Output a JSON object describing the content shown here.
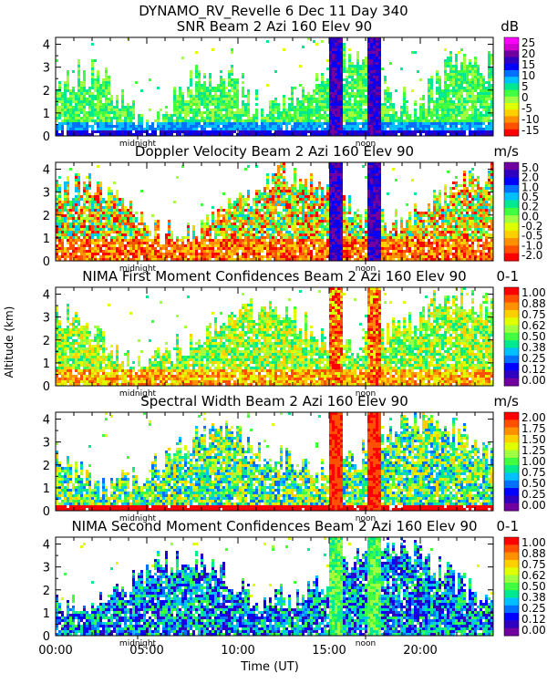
{
  "header": {
    "title": "DYNAMO_RV_Revelle    6 Dec 11 Day 340"
  },
  "axes": {
    "ylabel": "Altitude (km)",
    "xlabel": "Time (UT)",
    "x_ticks": [
      "00:00",
      "05:00",
      "10:00",
      "15:00",
      "20:00"
    ],
    "x_tick_values": [
      0,
      5,
      10,
      15,
      20
    ],
    "xlim": [
      0,
      24
    ],
    "ylim": [
      0,
      4.3
    ],
    "y_ticks": [
      "0",
      "1",
      "2",
      "3",
      "4"
    ],
    "midnight_label": "midnight",
    "noon_label": "noon"
  },
  "chart_data": [
    {
      "type": "heatmap",
      "title": "SNR Beam 2 Azi 160 Elev 90",
      "unit": "dB",
      "colorbar_labels": [
        "25",
        "20",
        "15",
        "10",
        "5",
        "0",
        "-5",
        "-10",
        "-15"
      ],
      "colorbar_colors": [
        "#ff00ff",
        "#d000d0",
        "#7000a0",
        "#3000c0",
        "#0000ff",
        "#0070ff",
        "#00c0ff",
        "#00e890",
        "#40ff40",
        "#a0ff40",
        "#e0ff00",
        "#ffd000",
        "#ff9000",
        "#ff5000",
        "#ff0000"
      ],
      "rain_bands_hours": [
        15.1,
        15.7,
        17.2,
        17.8
      ]
    },
    {
      "type": "heatmap",
      "title": "Doppler Velocity Beam 2 Azi 160 Elev 90",
      "unit": "m/s",
      "colorbar_labels": [
        "5.0",
        "2.0",
        "1.0",
        "0.5",
        "0.2",
        "0.0",
        "-0.2",
        "-0.5",
        "-1.0",
        "-2.0"
      ],
      "colorbar_colors": [
        "#7000a0",
        "#3000c0",
        "#0000ff",
        "#0070ff",
        "#00c0ff",
        "#00e890",
        "#40ff40",
        "#a0ff40",
        "#e0ff00",
        "#ffd000",
        "#ff9000",
        "#ff5000",
        "#ff0000"
      ]
    },
    {
      "type": "heatmap",
      "title": "NIMA First Moment Confidences Beam 2 Azi 160 Elev 90",
      "unit": "0-1",
      "colorbar_labels": [
        "1.00",
        "0.88",
        "0.75",
        "0.62",
        "0.50",
        "0.38",
        "0.25",
        "0.12",
        "0.00"
      ],
      "colorbar_colors": [
        "#ff0000",
        "#ff5000",
        "#ff9000",
        "#ffd000",
        "#e0ff00",
        "#a0ff40",
        "#40ff40",
        "#00e890",
        "#00c0ff",
        "#0070ff",
        "#0000ff",
        "#3000c0",
        "#7000a0"
      ]
    },
    {
      "type": "heatmap",
      "title": "Spectral Width Beam 2 Azi 160 Elev 90",
      "unit": "m/s",
      "colorbar_labels": [
        "2.00",
        "1.75",
        "1.50",
        "1.25",
        "1.00",
        "0.75",
        "0.50",
        "0.25",
        "0.00"
      ],
      "colorbar_colors": [
        "#ff0000",
        "#ff5000",
        "#ff9000",
        "#ffd000",
        "#e0ff00",
        "#a0ff40",
        "#40ff40",
        "#00e890",
        "#00c0ff",
        "#0070ff",
        "#0000ff",
        "#3000c0",
        "#7000a0"
      ]
    },
    {
      "type": "heatmap",
      "title": "NIMA Second Moment Confidences Beam 2 Azi 160 Elev 90",
      "unit": "0-1",
      "colorbar_labels": [
        "1.00",
        "0.88",
        "0.75",
        "0.62",
        "0.50",
        "0.38",
        "0.25",
        "0.12",
        "0.00"
      ],
      "colorbar_colors": [
        "#ff0000",
        "#ff5000",
        "#ff9000",
        "#ffd000",
        "#e0ff00",
        "#a0ff40",
        "#40ff40",
        "#00e890",
        "#00c0ff",
        "#0070ff",
        "#0000ff",
        "#3000c0",
        "#7000a0"
      ]
    }
  ]
}
